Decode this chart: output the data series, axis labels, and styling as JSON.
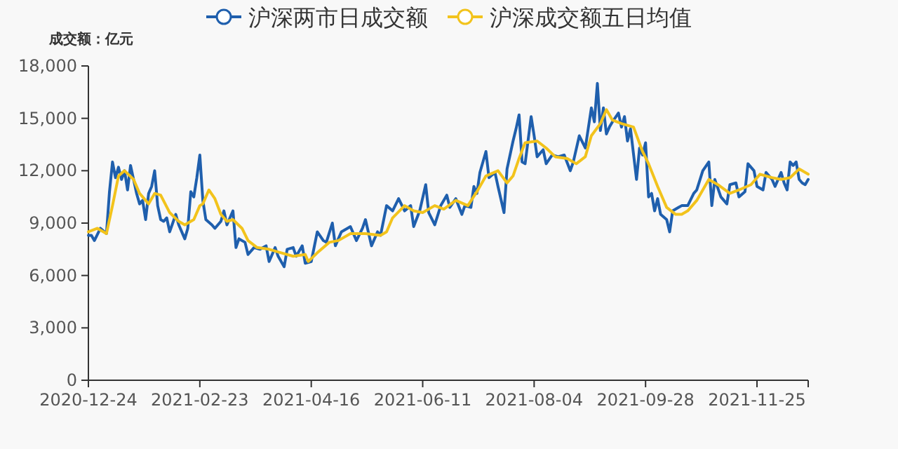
{
  "chart_data": {
    "type": "line",
    "ylabel": "成交额：亿元",
    "legend": "top",
    "categories": [
      "2020-12-24",
      null,
      null,
      null,
      null,
      null,
      null,
      null,
      null,
      null,
      null,
      null,
      null,
      null,
      null,
      null,
      null,
      null,
      null,
      null,
      null,
      null,
      null,
      null,
      null,
      null,
      null,
      null,
      null,
      null,
      null,
      null,
      null,
      null,
      null,
      null,
      null,
      "2021-02-23",
      null,
      null,
      null,
      null,
      null,
      null,
      null,
      null,
      null,
      null,
      null,
      null,
      null,
      null,
      null,
      null,
      null,
      null,
      null,
      null,
      null,
      null,
      null,
      null,
      null,
      null,
      null,
      null,
      null,
      null,
      null,
      null,
      null,
      null,
      null,
      null,
      "2021-04-16",
      null,
      null,
      null,
      null,
      null,
      null,
      null,
      null,
      null,
      null,
      null,
      null,
      null,
      null,
      null,
      null,
      null,
      null,
      null,
      null,
      null,
      null,
      null,
      null,
      null,
      null,
      null,
      null,
      null,
      null,
      null,
      null,
      null,
      null,
      null,
      null,
      "2021-06-11",
      null,
      null,
      null,
      null,
      null,
      null,
      null,
      null,
      null,
      null,
      null,
      null,
      null,
      null,
      null,
      null,
      null,
      null,
      null,
      null,
      null,
      null,
      null,
      null,
      null,
      null,
      null,
      null,
      null,
      null,
      null,
      null,
      null,
      null,
      null,
      null,
      "2021-08-04",
      null,
      null,
      null,
      null,
      null,
      null,
      null,
      null,
      null,
      null,
      null,
      null,
      null,
      null,
      null,
      null,
      null,
      null,
      null,
      null,
      null,
      null,
      null,
      null,
      null,
      null,
      null,
      null,
      null,
      null,
      null,
      null,
      null,
      null,
      null,
      null,
      "2021-09-28",
      null,
      null,
      null,
      null,
      null,
      null,
      null,
      null,
      null,
      null,
      null,
      null,
      null,
      null,
      null,
      null,
      null,
      null,
      null,
      null,
      null,
      null,
      null,
      null,
      null,
      null,
      null,
      null,
      null,
      null,
      null,
      null,
      null,
      null,
      null,
      null,
      "2021-11-25",
      null,
      null,
      null,
      null,
      null,
      null,
      null,
      null,
      null,
      null,
      null,
      null,
      null,
      null,
      null,
      null,
      null
    ],
    "ylim": [
      0,
      18000
    ],
    "yticks": [
      0,
      {
        "value": 3000,
        "label": "3,000"
      },
      {
        "value": 6000,
        "label": "6,000"
      },
      {
        "value": 9000,
        "label": "9,000"
      },
      {
        "value": 12000,
        "label": "12,000"
      },
      {
        "value": 15000,
        "label": "15,000"
      },
      {
        "value": 18000,
        "label": "18,000"
      }
    ],
    "series": [
      {
        "name": "沪深两市日成交额",
        "color": "#1f5fad",
        "values": [
          8300,
          8300,
          8000,
          null,
          8700,
          null,
          8400,
          10800,
          12500,
          11600,
          12200,
          11500,
          12000,
          10900,
          12300,
          null,
          10700,
          10100,
          10300,
          9200,
          10700,
          11100,
          12000,
          10000,
          9200,
          9100,
          9300,
          8500,
          null,
          9500,
          8900,
          null,
          8100,
          8700,
          10800,
          10500,
          11600,
          12900,
          10300,
          9200,
          null,
          8900,
          8700,
          null,
          9100,
          9700,
          8900,
          null,
          9700,
          7600,
          8100,
          null,
          7900,
          7200,
          null,
          7600,
          null,
          7500,
          null,
          7700,
          6800,
          null,
          7600,
          7100,
          null,
          6500,
          7500,
          null,
          7600,
          7100,
          null,
          7700,
          6700,
          null,
          6800,
          null,
          8500,
          null,
          8000,
          7900,
          null,
          9000,
          7700,
          null,
          8500,
          null,
          null,
          8800,
          null,
          8000,
          null,
          8700,
          9200,
          null,
          7700,
          null,
          8500,
          8300,
          null,
          10000,
          null,
          9700,
          null,
          10400,
          null,
          9700,
          null,
          10000,
          8800,
          null,
          9700,
          null,
          11200,
          9600,
          null,
          8900,
          null,
          10000,
          null,
          10600,
          9900,
          null,
          10400,
          null,
          9500,
          10000,
          null,
          9900,
          11100,
          10700,
          11900,
          null,
          13100,
          11600,
          null,
          11900,
          11100,
          null,
          9600,
          12100,
          null,
          13700,
          14400,
          15200,
          12500,
          12400,
          null,
          15100,
          14000,
          12800,
          null,
          13200,
          12400,
          null,
          12900,
          null,
          12800,
          null,
          12900,
          null,
          12000,
          12500,
          null,
          14000,
          null,
          13300,
          null,
          15600,
          14800,
          17000,
          14300,
          15600,
          14100,
          14500,
          14800,
          null,
          15300,
          14500,
          15100,
          13700,
          14400,
          null,
          11500,
          13300,
          12900,
          13600,
          10500,
          10700,
          9700,
          10400,
          9500,
          null,
          9200,
          8500,
          9700,
          null,
          9900,
          10000,
          null,
          10000,
          null,
          10700,
          10900,
          null,
          12000,
          null,
          12500,
          10000,
          11500,
          null,
          10500,
          null,
          10100,
          11200,
          null,
          11300,
          10500,
          null,
          10800,
          12400,
          null,
          12000,
          11100,
          null,
          10900,
          11900,
          null,
          11500,
          11100,
          null,
          11900,
          11300,
          10900,
          12500,
          12300,
          12500,
          11500,
          11300,
          11200,
          11500
        ]
      },
      {
        "name": "沪深成交额五日均值",
        "color": "#f2c31c",
        "values": [
          8500,
          null,
          null,
          8700,
          null,
          null,
          8400,
          null,
          10000,
          null,
          11700,
          null,
          12000,
          null,
          null,
          11500,
          null,
          10700,
          null,
          null,
          10100,
          null,
          10700,
          null,
          10600,
          null,
          null,
          9600,
          null,
          null,
          9100,
          null,
          8900,
          null,
          null,
          9200,
          null,
          10000,
          10100,
          null,
          10900,
          null,
          10400,
          null,
          9500,
          null,
          9100,
          null,
          9200,
          null,
          null,
          8700,
          null,
          8000,
          null,
          null,
          7600,
          null,
          null,
          null,
          7500,
          null,
          null,
          null,
          7300,
          null,
          null,
          null,
          7100,
          null,
          null,
          null,
          7200,
          6800,
          null,
          null,
          7300,
          null,
          null,
          null,
          7900,
          null,
          null,
          8000,
          null,
          null,
          null,
          8400,
          null,
          null,
          null,
          null,
          8400,
          null,
          null,
          null,
          null,
          8300,
          null,
          8500,
          null,
          9300,
          null,
          null,
          null,
          10000,
          null,
          null,
          9700,
          null,
          null,
          9600,
          null,
          null,
          null,
          10000,
          null,
          null,
          9800,
          null,
          null,
          null,
          10300,
          null,
          null,
          null,
          10000,
          null,
          null,
          10800,
          null,
          null,
          11700,
          null,
          null,
          null,
          12000,
          null,
          null,
          11300,
          null,
          11700,
          null,
          12700,
          null,
          13600,
          null,
          null,
          null,
          13700,
          null,
          null,
          13300,
          null,
          null,
          12800,
          null,
          null,
          null,
          12700,
          null,
          null,
          12400,
          null,
          null,
          12800,
          null,
          14000,
          null,
          null,
          14700,
          null,
          15500,
          null,
          14900,
          null,
          null,
          14700,
          null,
          null,
          null,
          14500,
          null,
          null,
          13100,
          null,
          12400,
          null,
          null,
          11100,
          null,
          null,
          9900,
          null,
          null,
          9500,
          null,
          9500,
          null,
          9700,
          null,
          null,
          10300,
          null,
          null,
          null,
          11500,
          null,
          null,
          11200,
          null,
          null,
          null,
          10700,
          null,
          null,
          10900,
          null,
          null,
          null,
          11200,
          null,
          null,
          11800,
          null,
          null,
          null,
          11600,
          null,
          null,
          11500,
          null,
          null,
          11600,
          null,
          null,
          12100,
          null,
          null,
          11800
        ]
      }
    ]
  }
}
